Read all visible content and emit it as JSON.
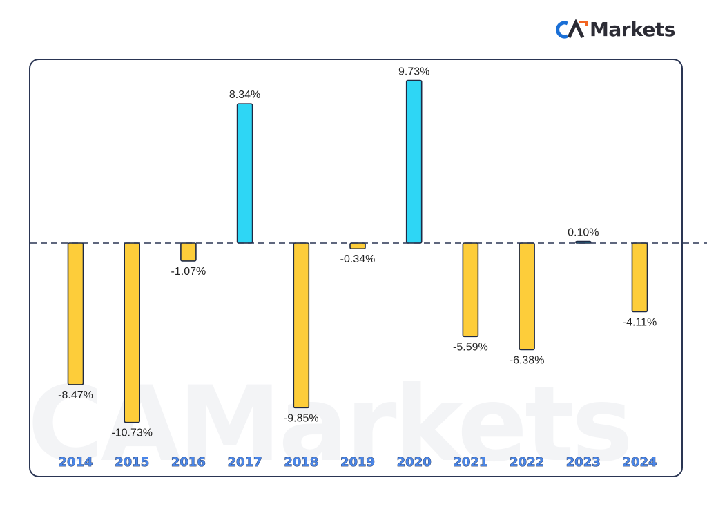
{
  "brand": {
    "logo_text": "Markets",
    "logo_mark": "CA",
    "colors": {
      "blue": "#1a6fd6",
      "orange": "#f26522",
      "dark": "#2c2c35"
    }
  },
  "watermark": {
    "text": "CAMarkets"
  },
  "chart_data": {
    "type": "bar",
    "categories": [
      "2014",
      "2015",
      "2016",
      "2017",
      "2018",
      "2019",
      "2020",
      "2021",
      "2022",
      "2023",
      "2024"
    ],
    "values": [
      -8.47,
      -10.73,
      -1.07,
      8.34,
      -9.85,
      -0.34,
      9.73,
      -5.59,
      -6.38,
      0.1,
      -4.11
    ],
    "labels": [
      "-8.47%",
      "-10.73%",
      "-1.07%",
      "8.34%",
      "-9.85%",
      "-0.34%",
      "9.73%",
      "-5.59%",
      "-6.38%",
      "0.10%",
      "-4.11%"
    ],
    "title": "",
    "xlabel": "",
    "ylabel": "",
    "ylim": [
      -11.5,
      10.2
    ],
    "zero_line": "dashed",
    "grid": false,
    "legend": "none",
    "colors": {
      "positive": "#2ed6f5",
      "negative": "#fdcd3a",
      "outline": "#1f2a44",
      "axis_labels": "#4a86e8",
      "axis_label_outline": "#2a3553"
    }
  }
}
